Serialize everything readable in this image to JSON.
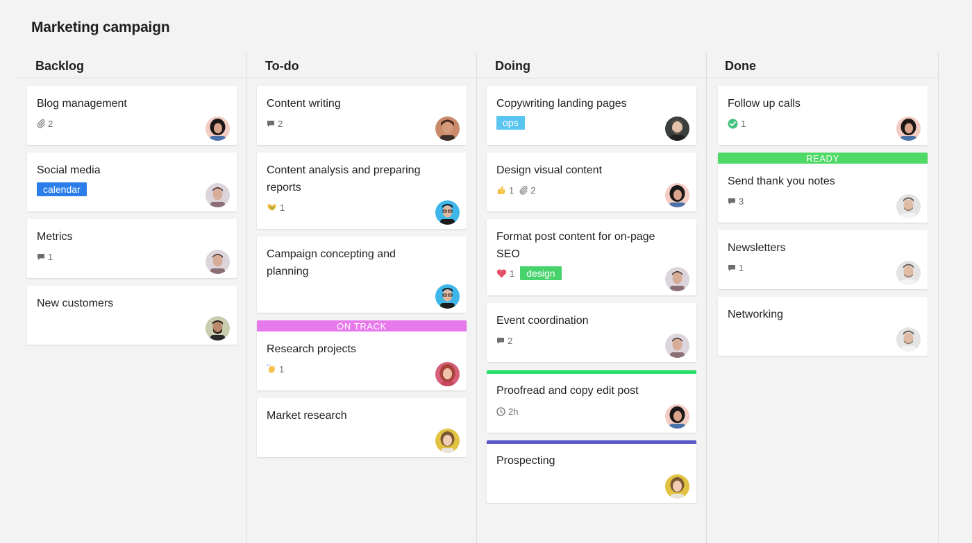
{
  "board": {
    "title": "Marketing campaign"
  },
  "colors": {
    "calendar": "#2b7de9",
    "ops": "#5bc5f2",
    "design": "#47d36b",
    "on_track": "#e879ec",
    "ready": "#4fd966",
    "stripe_green": "#25e06b",
    "stripe_purple": "#5b58c8",
    "heart": "#e8506a",
    "check": "#42c27c"
  },
  "columns": [
    {
      "title": "Backlog",
      "cards": [
        {
          "title": "Blog management",
          "attachments": "2",
          "avatar": "woman-dark-hair"
        },
        {
          "title": "Social media",
          "tag": "calendar",
          "avatar": "man-short-hair"
        },
        {
          "title": "Metrics",
          "comments": "1",
          "avatar": "man-short-hair"
        },
        {
          "title": "New customers",
          "avatar": "man-beard"
        }
      ]
    },
    {
      "title": "To-do",
      "cards": [
        {
          "title": "Content writing",
          "comments": "2",
          "avatar": "man-curly"
        },
        {
          "title": "Content analysis and preparing reports",
          "reaction_icon": "handshake-icon",
          "reactions": "1",
          "avatar": "man-glasses-blue"
        },
        {
          "title": "Campaign concepting and planning",
          "avatar": "man-glasses-blue"
        },
        {
          "title": "Research projects",
          "banner": "ON TRACK",
          "reaction_icon": "clap-icon",
          "reactions": "1",
          "avatar": "woman-red-hair"
        },
        {
          "title": "Market research",
          "avatar": "woman-blonde"
        }
      ]
    },
    {
      "title": "Doing",
      "cards": [
        {
          "title": "Copywriting landing pages",
          "tag": "ops",
          "avatar": "man-dark-beard"
        },
        {
          "title": "Design visual content",
          "likes": "1",
          "attachments": "2",
          "avatar": "woman-dark-hair"
        },
        {
          "title": "Format post content for on-page SEO",
          "hearts": "1",
          "tag": "design",
          "avatar": "man-short-hair"
        },
        {
          "title": "Event coordination",
          "comments": "2",
          "avatar": "man-short-hair"
        },
        {
          "title": "Proofread and copy edit post",
          "time": "2h",
          "avatar": "woman-dark-hair"
        },
        {
          "title": "Prospecting",
          "avatar": "woman-blonde"
        }
      ]
    },
    {
      "title": "Done",
      "cards": [
        {
          "title": "Follow up calls",
          "approvals": "1",
          "avatar": "woman-dark-hair"
        },
        {
          "title": "Send thank you notes",
          "banner": "READY",
          "comments": "3",
          "avatar": "man-grey"
        },
        {
          "title": "Newsletters",
          "comments": "1",
          "avatar": "man-grey"
        },
        {
          "title": "Networking",
          "avatar": "man-grey"
        }
      ]
    }
  ]
}
